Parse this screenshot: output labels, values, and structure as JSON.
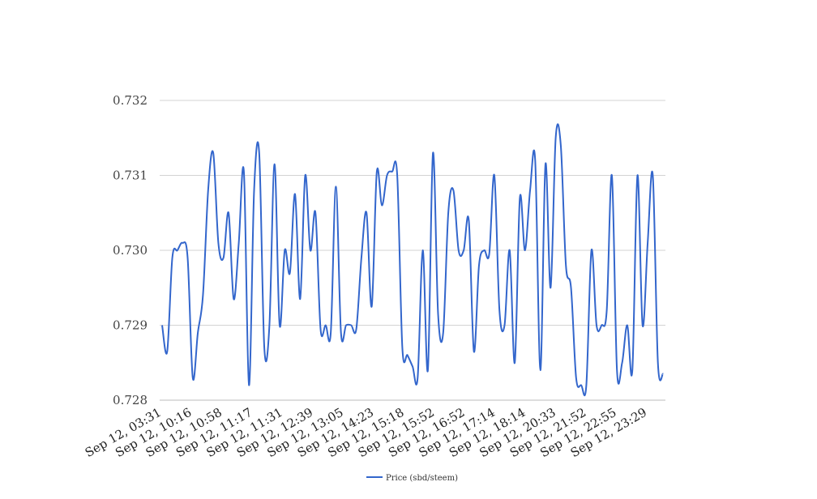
{
  "chart_data": {
    "type": "line",
    "title": "",
    "xlabel": "",
    "ylabel": "",
    "ylim": [
      0.728,
      0.732
    ],
    "y_ticks": [
      "0.728",
      "0.729",
      "0.730",
      "0.731",
      "0.732"
    ],
    "x_tick_labels": [
      "Sep 12, 03:31",
      "Sep 12, 10:16",
      "Sep 12, 10:58",
      "Sep 12, 11:17",
      "Sep 12, 11:31",
      "Sep 12, 12:39",
      "Sep 12, 13:05",
      "Sep 12, 14:23",
      "Sep 12, 15:18",
      "Sep 12, 15:52",
      "Sep 12, 16:52",
      "Sep 12, 17:14",
      "Sep 12, 18:14",
      "Sep 12, 20:33",
      "Sep 12, 21:52",
      "Sep 12, 22:55",
      "Sep 12, 23:29"
    ],
    "grid": true,
    "legend_position": "bottom",
    "series": [
      {
        "name": "Price (sbd/steem)",
        "color": "#3366cc",
        "values": [
          0.729,
          0.72865,
          0.7299,
          0.73,
          0.7301,
          0.7299,
          0.7283,
          0.7289,
          0.7294,
          0.7308,
          0.7313,
          0.7301,
          0.7299,
          0.7305,
          0.72935,
          0.7301,
          0.73105,
          0.7282,
          0.7308,
          0.7313,
          0.7287,
          0.729,
          0.73115,
          0.729,
          0.73,
          0.7297,
          0.73075,
          0.72935,
          0.731,
          0.73,
          0.7305,
          0.72895,
          0.729,
          0.7289,
          0.73085,
          0.7289,
          0.729,
          0.729,
          0.72895,
          0.7299,
          0.7305,
          0.72925,
          0.73105,
          0.7306,
          0.731,
          0.73105,
          0.731,
          0.7287,
          0.7286,
          0.72845,
          0.7283,
          0.73,
          0.7284,
          0.7313,
          0.72915,
          0.7289,
          0.7305,
          0.7308,
          0.73,
          0.73,
          0.7304,
          0.72865,
          0.7298,
          0.73,
          0.72995,
          0.731,
          0.7292,
          0.729,
          0.73,
          0.7285,
          0.7307,
          0.73,
          0.7308,
          0.7312,
          0.7284,
          0.73115,
          0.7295,
          0.7315,
          0.7314,
          0.7298,
          0.7295,
          0.7283,
          0.7282,
          0.7282,
          0.73,
          0.729,
          0.729,
          0.7292,
          0.731,
          0.7284,
          0.7285,
          0.729,
          0.7284,
          0.731,
          0.729,
          0.7301,
          0.731,
          0.7285,
          0.72835
        ]
      }
    ]
  }
}
